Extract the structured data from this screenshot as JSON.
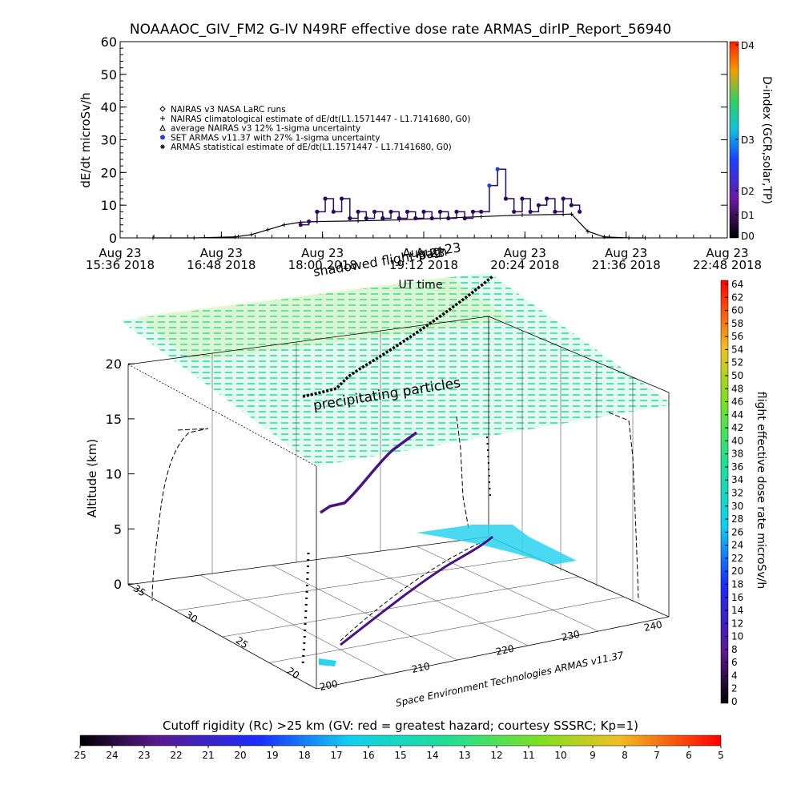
{
  "title": "NOAAAOC_GIV_FM2 G-IV    N49RF   effective dose rate ARMAS_dirIP_Report_56940",
  "colors": {
    "series": "#2a0a5e",
    "armas_marker": "#1f3fd6",
    "climatology": "#000000",
    "grid": "#000000",
    "ground_fill": "#29d4f0",
    "upper_field": [
      "#60e6b0",
      "#7fe07a",
      "#b8e050"
    ]
  },
  "chart_data": [
    {
      "type": "line",
      "title": "",
      "ylabel": "dE/dt microSv/h",
      "xlabel": "",
      "ylim": [
        0,
        60
      ],
      "yticks": [
        "0",
        "10",
        "20",
        "30",
        "40",
        "50",
        "60"
      ],
      "xticks": [
        {
          "top": "Aug 23",
          "bottom": "15:36 2018"
        },
        {
          "top": "Aug 23",
          "bottom": "16:48 2018"
        },
        {
          "top": "Aug 23",
          "bottom": "18:00 2018"
        },
        {
          "top": "Aug 23",
          "bottom": "19:12 2018"
        },
        {
          "top": "Aug 23",
          "bottom": "20:24 2018"
        },
        {
          "top": "Aug 23",
          "bottom": "21:36 2018"
        },
        {
          "top": "Aug 23",
          "bottom": "22:48 2018"
        }
      ],
      "xlim_hours": [
        15.6,
        23.0
      ],
      "legend_placement": "upper-left",
      "legend": [
        "NAIRAS v3 NASA LaRC runs",
        "NAIRAS climatological estimate of dE/dt(L1.1571447 - L1.7141680, G0)",
        "average NAIRAS v3 12% 1-sigma uncertainty",
        "SET ARMAS v11.37 with 27% 1-sigma uncertainty",
        "ARMAS statistical estimate of dE/dt(L1.1571447 - L1.7141680, G0)"
      ],
      "right_axis": {
        "label": "D-index (GCR,solar,TP)",
        "ticks": [
          "D0",
          "D1",
          "D2",
          "D3",
          "D4"
        ]
      },
      "series": [
        {
          "name": "NAIRAS climatological estimate of dE/dt(L1.1571447 - L1.7141680, G0)",
          "x_hours": [
            16.0,
            16.5,
            17.0,
            17.2,
            17.4,
            17.6,
            17.8,
            18.0,
            18.5,
            19.0,
            19.5,
            20.0,
            20.5,
            21.0,
            21.1,
            21.3,
            21.5,
            21.8,
            22.0
          ],
          "values": [
            0,
            0,
            0.3,
            1.0,
            2.5,
            4.0,
            4.8,
            5.0,
            5.2,
            5.5,
            6.0,
            6.5,
            7.0,
            7.2,
            7.3,
            2.0,
            0.3,
            0,
            0
          ]
        },
        {
          "name": "SET ARMAS v11.37 with 27% 1-sigma uncertainty",
          "x_hours": [
            17.8,
            17.9,
            18.0,
            18.1,
            18.2,
            18.3,
            18.4,
            18.5,
            18.6,
            18.7,
            18.8,
            18.9,
            19.0,
            19.1,
            19.2,
            19.3,
            19.4,
            19.5,
            19.6,
            19.7,
            19.8,
            19.9,
            20.0,
            20.1,
            20.2,
            20.3,
            20.4,
            20.5,
            20.6,
            20.7,
            20.8,
            20.9,
            21.0,
            21.1,
            21.2
          ],
          "values": [
            4,
            5,
            8,
            12,
            8,
            12,
            6,
            8,
            6,
            8,
            6,
            8,
            6,
            8,
            6,
            8,
            6,
            8,
            6,
            8,
            6,
            8,
            8,
            16,
            21,
            12,
            8,
            12,
            8,
            10,
            12,
            8,
            12,
            10,
            8
          ]
        }
      ]
    },
    {
      "type": "scatter",
      "title": "",
      "xlabel": "UT time",
      "ylabel": "Altitude (km)",
      "zticks": [
        "0",
        "5",
        "10",
        "15",
        "20"
      ],
      "lat_ticks": [
        "20",
        "25",
        "30",
        "35"
      ],
      "lon_ticks": [
        "200",
        "210",
        "220",
        "230",
        "240"
      ],
      "annotations": [
        "Aug 23",
        "shadowed flight path",
        "precipitating particles",
        "Space Environment Technologies ARMAS v11.37"
      ],
      "right_colorbar": {
        "label": "flight effective dose rate microSv/h",
        "ticks": [
          "0",
          "2",
          "4",
          "6",
          "8",
          "10",
          "12",
          "14",
          "16",
          "18",
          "20",
          "22",
          "24",
          "26",
          "28",
          "30",
          "32",
          "34",
          "36",
          "38",
          "40",
          "42",
          "44",
          "46",
          "48",
          "50",
          "52",
          "54",
          "56",
          "58",
          "60",
          "62",
          "64"
        ]
      },
      "bottom_colorbar": {
        "label": "Cutoff rigidity (Rc) >25 km (GV: red = greatest hazard; courtesy SSSRC; Kp=1)",
        "ticks": [
          "25",
          "24",
          "23",
          "22",
          "21",
          "20",
          "19",
          "18",
          "17",
          "16",
          "15",
          "14",
          "13",
          "12",
          "11",
          "10",
          "9",
          "8",
          "7",
          "6",
          "5"
        ]
      },
      "flight_track": {
        "altitude_km": [
          0,
          1,
          3,
          5,
          6.5,
          7,
          8,
          9,
          10,
          11,
          12,
          12.5,
          13,
          13.5,
          14
        ]
      }
    }
  ]
}
